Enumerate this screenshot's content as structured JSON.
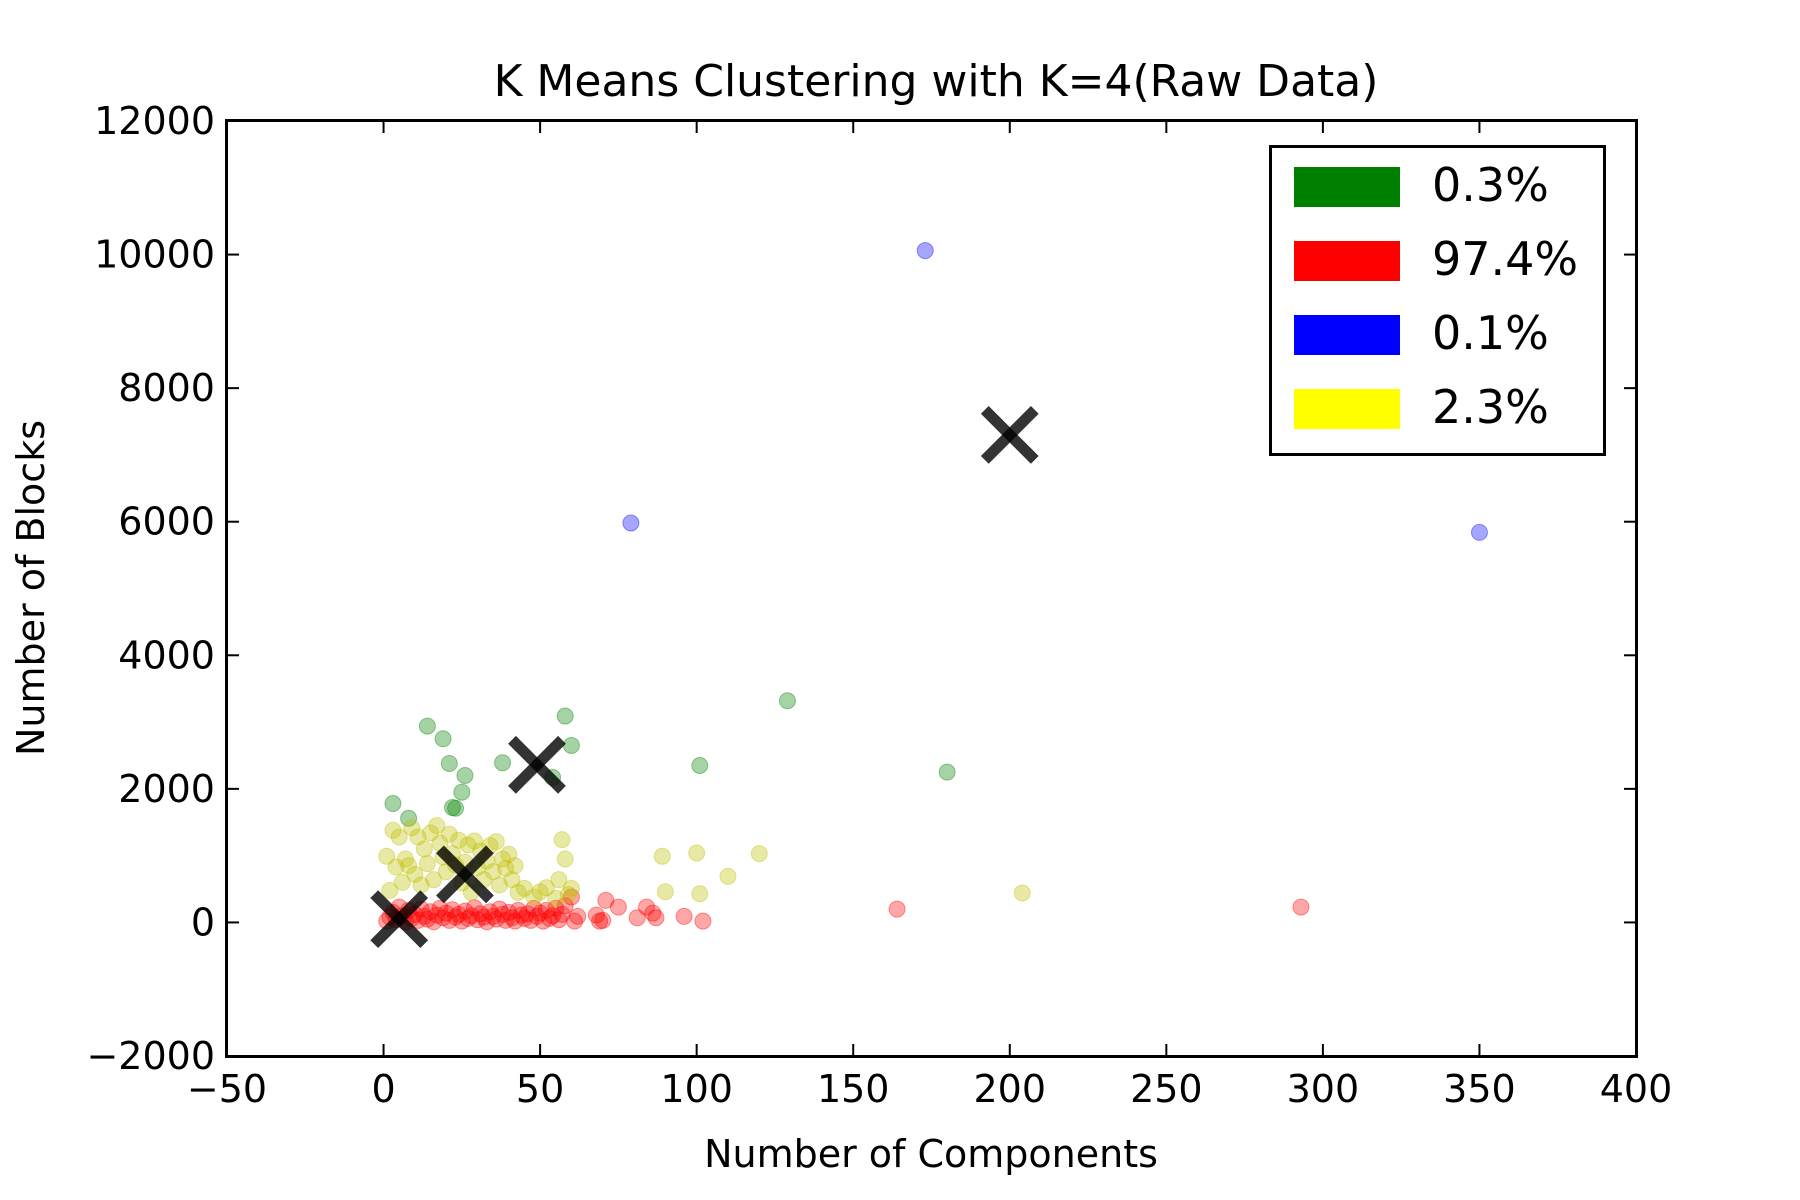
{
  "chart_data": {
    "type": "scatter",
    "title": "K Means Clustering with K=4(Raw Data)",
    "xlabel": "Number of Components",
    "ylabel": "Number of Blocks",
    "xlim": [
      -50,
      400
    ],
    "ylim": [
      -2000,
      12000
    ],
    "xticks": [
      -50,
      0,
      50,
      100,
      150,
      200,
      250,
      300,
      350,
      400
    ],
    "xtick_labels": [
      "−50",
      "0",
      "50",
      "100",
      "150",
      "200",
      "250",
      "300",
      "350",
      "400"
    ],
    "yticks": [
      -2000,
      0,
      2000,
      4000,
      6000,
      8000,
      10000,
      12000
    ],
    "ytick_labels": [
      "−2000",
      "0",
      "2000",
      "4000",
      "6000",
      "8000",
      "10000",
      "12000"
    ],
    "grid": false,
    "legend_position": "top-right",
    "legend": [
      {
        "label": "0.3%",
        "color": "#008000"
      },
      {
        "label": "97.4%",
        "color": "#ff0000"
      },
      {
        "label": "0.1%",
        "color": "#0000ff"
      },
      {
        "label": "2.3%",
        "color": "#ffff00"
      }
    ],
    "series": [
      {
        "color": "#008000",
        "points": [
          [
            3,
            1780
          ],
          [
            8,
            1560
          ],
          [
            14,
            2940
          ],
          [
            19,
            2750
          ],
          [
            21,
            2380
          ],
          [
            22,
            1720
          ],
          [
            23,
            1710
          ],
          [
            25,
            1950
          ],
          [
            26,
            2200
          ],
          [
            38,
            2390
          ],
          [
            54,
            2170
          ],
          [
            58,
            3090
          ],
          [
            60,
            2650
          ],
          [
            101,
            2350
          ],
          [
            129,
            3320
          ],
          [
            180,
            2250
          ]
        ]
      },
      {
        "color": "#ff0000",
        "points": [
          [
            1,
            20
          ],
          [
            2,
            80
          ],
          [
            3,
            150
          ],
          [
            4,
            40
          ],
          [
            5,
            230
          ],
          [
            6,
            100
          ],
          [
            7,
            10
          ],
          [
            8,
            180
          ],
          [
            9,
            60
          ],
          [
            10,
            120
          ],
          [
            11,
            30
          ],
          [
            12,
            200
          ],
          [
            13,
            90
          ],
          [
            14,
            50
          ],
          [
            15,
            160
          ],
          [
            16,
            10
          ],
          [
            17,
            110
          ],
          [
            18,
            210
          ],
          [
            19,
            70
          ],
          [
            20,
            140
          ],
          [
            21,
            30
          ],
          [
            22,
            190
          ],
          [
            23,
            80
          ],
          [
            24,
            120
          ],
          [
            25,
            20
          ],
          [
            26,
            170
          ],
          [
            27,
            60
          ],
          [
            28,
            100
          ],
          [
            29,
            220
          ],
          [
            30,
            40
          ],
          [
            31,
            130
          ],
          [
            32,
            80
          ],
          [
            33,
            10
          ],
          [
            34,
            160
          ],
          [
            35,
            90
          ],
          [
            36,
            50
          ],
          [
            37,
            200
          ],
          [
            38,
            120
          ],
          [
            39,
            30
          ],
          [
            40,
            150
          ],
          [
            41,
            70
          ],
          [
            42,
            20
          ],
          [
            43,
            180
          ],
          [
            44,
            110
          ],
          [
            45,
            60
          ],
          [
            46,
            130
          ],
          [
            47,
            30
          ],
          [
            48,
            210
          ],
          [
            49,
            90
          ],
          [
            50,
            140
          ],
          [
            51,
            20
          ],
          [
            52,
            180
          ],
          [
            53,
            60
          ],
          [
            54,
            100
          ],
          [
            55,
            210
          ],
          [
            56,
            40
          ],
          [
            57,
            120
          ],
          [
            58,
            250
          ],
          [
            60,
            380
          ],
          [
            61,
            20
          ],
          [
            62,
            90
          ],
          [
            68,
            110
          ],
          [
            69,
            20
          ],
          [
            70,
            30
          ],
          [
            71,
            330
          ],
          [
            75,
            230
          ],
          [
            81,
            70
          ],
          [
            84,
            230
          ],
          [
            86,
            140
          ],
          [
            87,
            70
          ],
          [
            96,
            90
          ],
          [
            102,
            20
          ],
          [
            164,
            200
          ],
          [
            293,
            230
          ]
        ]
      },
      {
        "color": "#0000ff",
        "points": [
          [
            79,
            5980
          ],
          [
            173,
            10060
          ],
          [
            350,
            5840
          ]
        ]
      },
      {
        "color": "#bfbf00",
        "points": [
          [
            1,
            990
          ],
          [
            2,
            480
          ],
          [
            3,
            1380
          ],
          [
            4,
            830
          ],
          [
            5,
            1280
          ],
          [
            6,
            600
          ],
          [
            7,
            950
          ],
          [
            8,
            850
          ],
          [
            9,
            1420
          ],
          [
            10,
            720
          ],
          [
            11,
            1280
          ],
          [
            12,
            560
          ],
          [
            13,
            1100
          ],
          [
            14,
            880
          ],
          [
            15,
            1340
          ],
          [
            16,
            640
          ],
          [
            17,
            1450
          ],
          [
            18,
            1190
          ],
          [
            19,
            980
          ],
          [
            20,
            760
          ],
          [
            21,
            1320
          ],
          [
            22,
            1030
          ],
          [
            23,
            860
          ],
          [
            24,
            1230
          ],
          [
            25,
            590
          ],
          [
            26,
            900
          ],
          [
            27,
            1160
          ],
          [
            28,
            450
          ],
          [
            29,
            1220
          ],
          [
            30,
            820
          ],
          [
            31,
            1070
          ],
          [
            32,
            640
          ],
          [
            33,
            920
          ],
          [
            34,
            1150
          ],
          [
            35,
            760
          ],
          [
            36,
            1210
          ],
          [
            37,
            560
          ],
          [
            38,
            950
          ],
          [
            39,
            810
          ],
          [
            40,
            1020
          ],
          [
            41,
            640
          ],
          [
            42,
            850
          ],
          [
            43,
            450
          ],
          [
            45,
            510
          ],
          [
            48,
            380
          ],
          [
            50,
            460
          ],
          [
            52,
            520
          ],
          [
            55,
            360
          ],
          [
            56,
            640
          ],
          [
            57,
            1240
          ],
          [
            58,
            950
          ],
          [
            59,
            420
          ],
          [
            60,
            510
          ],
          [
            89,
            990
          ],
          [
            90,
            460
          ],
          [
            100,
            1040
          ],
          [
            101,
            430
          ],
          [
            110,
            690
          ],
          [
            120,
            1030
          ],
          [
            204,
            440
          ]
        ]
      }
    ],
    "centroids": [
      [
        5,
        50
      ],
      [
        26,
        720
      ],
      [
        49,
        2360
      ],
      [
        200,
        7300
      ]
    ]
  }
}
